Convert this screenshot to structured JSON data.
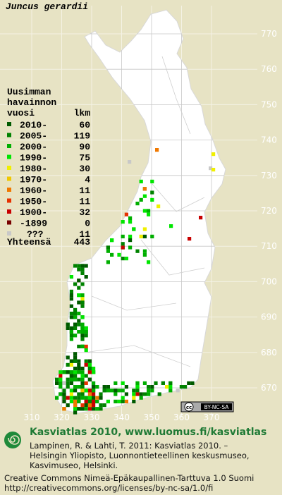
{
  "title": "Juncus gerardii",
  "legend": {
    "heading": [
      "Uusimman",
      "havainnon",
      "vuosi"
    ],
    "count_heading": "lkm",
    "rows": [
      {
        "label": "2010-",
        "count": 60,
        "color": "#005a00"
      },
      {
        "label": "2005-",
        "count": 119,
        "color": "#008200"
      },
      {
        "label": "2000-",
        "count": 90,
        "color": "#00ae00"
      },
      {
        "label": "1990-",
        "count": 75,
        "color": "#00e600"
      },
      {
        "label": "1980-",
        "count": 30,
        "color": "#f0f000"
      },
      {
        "label": "1970-",
        "count": 4,
        "color": "#f0c800"
      },
      {
        "label": "1960-",
        "count": 11,
        "color": "#f07800"
      },
      {
        "label": "1950-",
        "count": 11,
        "color": "#e63200"
      },
      {
        "label": "1900-",
        "count": 32,
        "color": "#c80000"
      },
      {
        "label": "-1899",
        "count": 0,
        "color": "#780000"
      },
      {
        "label": "???",
        "count": 11,
        "color": "#c8c8c8"
      }
    ],
    "total_label": "Yhteensä",
    "total": 443
  },
  "map": {
    "xticks": [
      310,
      320,
      330,
      340,
      350,
      360,
      370
    ],
    "yticks": [
      670,
      680,
      690,
      700,
      710,
      720,
      730,
      740,
      750,
      760,
      770
    ]
  },
  "license_badge": {
    "cc": "cc",
    "terms": "BY-NC-SA"
  },
  "footer": {
    "heading": "Kasviatlas 2010, www.luomus.fi/kasviatlas",
    "citation": [
      "Lampinen, R. & Lahti, T. 2011: Kasviatlas 2010. –",
      "Helsingin Yliopisto, Luonnontieteellinen keskusmuseo,",
      "Kasvimuseo, Helsinki."
    ],
    "license": "Creative Commons Nimeä-Epäkaupallinen-Tarttuva 1.0 Suomi",
    "license_url": "http://creativecommons.org/licenses/by-nc-sa/1.0/fi"
  }
}
